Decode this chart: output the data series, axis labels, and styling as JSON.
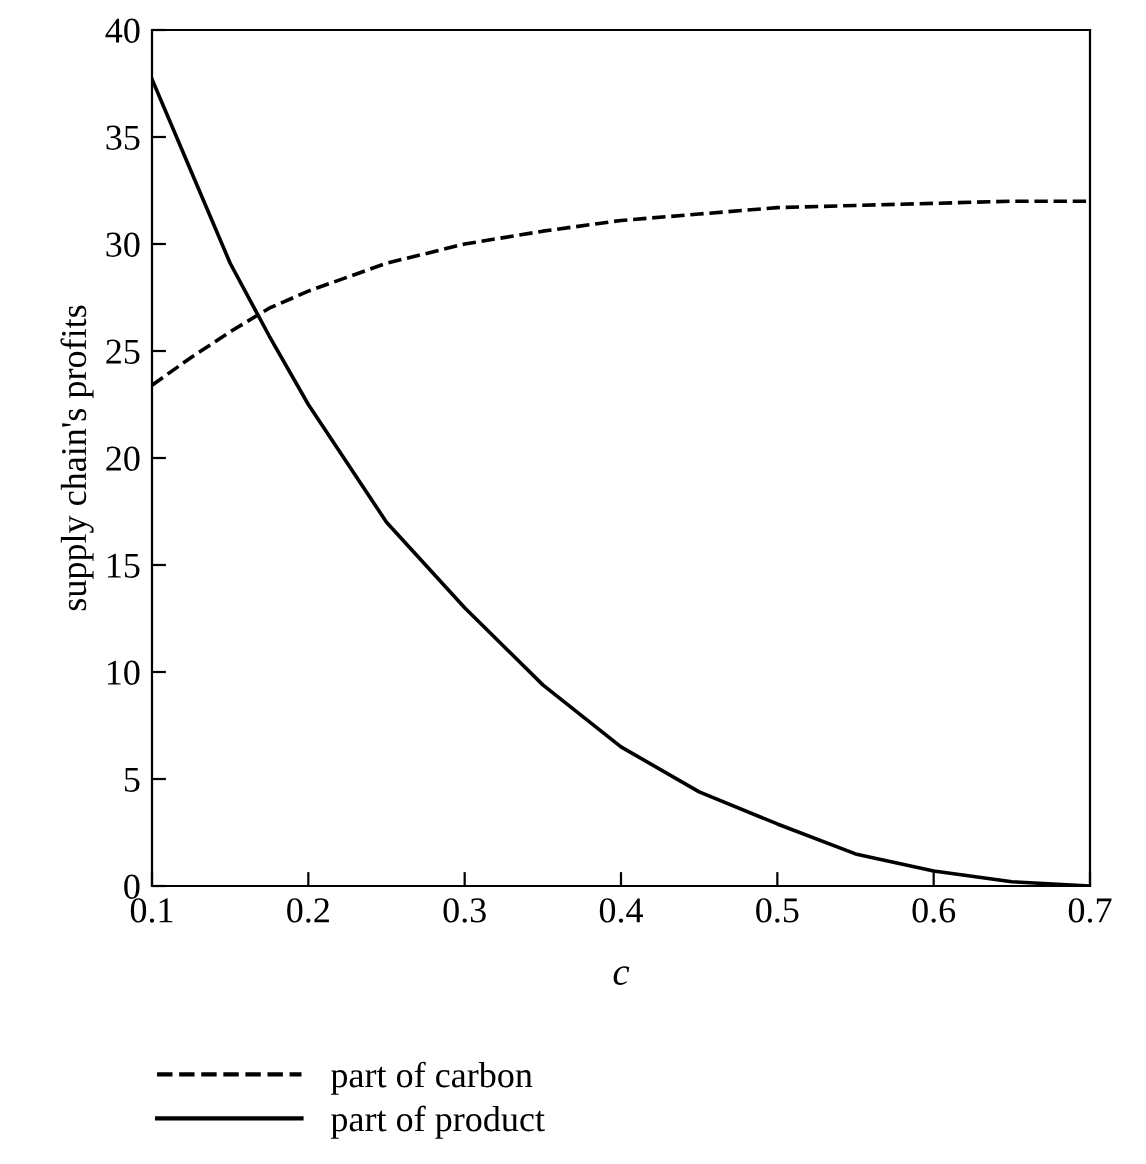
{
  "chart_data": {
    "type": "line",
    "xlabel": "c",
    "ylabel": "supply chain's profits",
    "x": [
      0.1,
      0.125,
      0.15,
      0.175,
      0.2,
      0.25,
      0.3,
      0.35,
      0.4,
      0.45,
      0.5,
      0.55,
      0.6,
      0.65,
      0.7
    ],
    "series": [
      {
        "name": "part of carbon",
        "color": "#000000",
        "line_style": "dashed",
        "values": [
          23.4,
          24.7,
          25.9,
          27.0,
          27.8,
          29.1,
          30.0,
          30.6,
          31.1,
          31.4,
          31.7,
          31.8,
          31.9,
          32.0,
          32.0
        ]
      },
      {
        "name": "part of product",
        "color": "#000000",
        "line_style": "solid",
        "values": [
          37.7,
          33.4,
          29.1,
          25.7,
          22.5,
          17.0,
          13.0,
          9.4,
          6.5,
          4.4,
          2.9,
          1.5,
          0.7,
          0.2,
          0.0
        ]
      }
    ],
    "xlim": [
      0.1,
      0.7
    ],
    "xticks": [
      0.1,
      0.2,
      0.3,
      0.4,
      0.5,
      0.6,
      0.7
    ],
    "ylim": [
      0,
      40
    ],
    "yticks": [
      0,
      5,
      10,
      15,
      20,
      25,
      30,
      35,
      40
    ],
    "grid": false,
    "legend": "bottom left"
  }
}
